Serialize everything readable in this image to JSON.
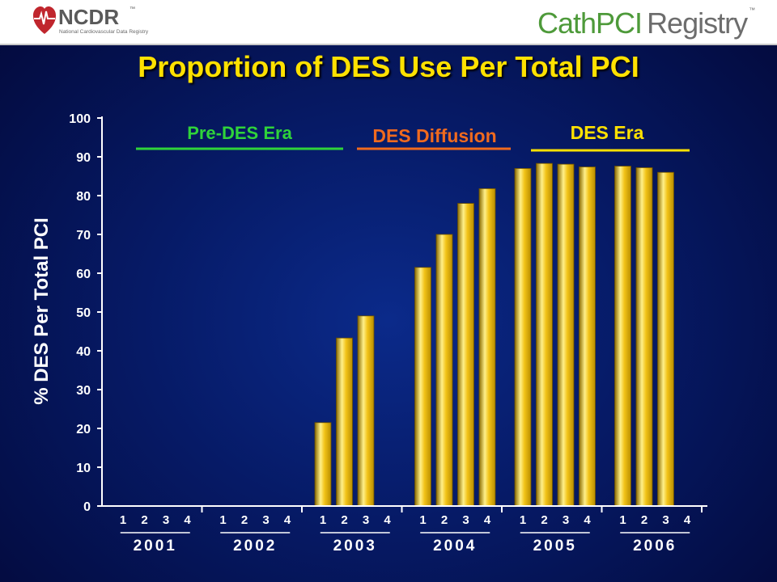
{
  "header": {
    "left_logo": {
      "wordmark": "NCDR",
      "tm": "™",
      "subtitle": "National Cardiovascular Data Registry"
    },
    "right_logo": {
      "part1": "CathPCI",
      "part2": "Registry",
      "tm": "™"
    }
  },
  "colors": {
    "bar": "#f2c318",
    "title": "#ffe100",
    "pre_des": "#2fd33a",
    "diffusion": "#f06a1e",
    "des_era": "#ffe100"
  },
  "chart_data": {
    "type": "bar",
    "title": "Proportion of DES Use Per Total PCI",
    "ylabel": "% DES Per Total PCI",
    "xlabel": "",
    "ylim": [
      0,
      100
    ],
    "yticks": [
      "0",
      "10",
      "20",
      "30",
      "40",
      "50",
      "60",
      "70",
      "80",
      "90",
      "100"
    ],
    "grid": false,
    "quarter_labels": [
      "1",
      "2",
      "3",
      "4"
    ],
    "years": [
      "2001",
      "2002",
      "2003",
      "2004",
      "2005",
      "2006"
    ],
    "values": [
      [
        null,
        null,
        null,
        null
      ],
      [
        null,
        null,
        null,
        null
      ],
      [
        21.5,
        43.3,
        49.0,
        null
      ],
      [
        61.5,
        70.0,
        78.0,
        81.8
      ],
      [
        87.0,
        88.3,
        88.1,
        87.4
      ],
      [
        87.6,
        87.2,
        86.0,
        null
      ]
    ],
    "eras": [
      {
        "label": "Pre-DES Era"
      },
      {
        "label": "DES Diffusion"
      },
      {
        "label": "DES Era"
      }
    ]
  }
}
